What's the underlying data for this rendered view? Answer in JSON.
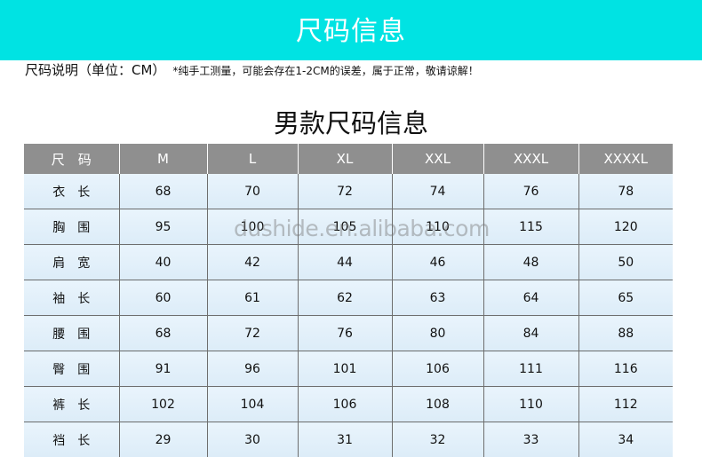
{
  "banner": {
    "title": "尺码信息",
    "color": "#00e3e3"
  },
  "note": {
    "label": "尺码说明（单位：CM）",
    "detail": "*纯手工测量，可能会存在1-2CM的误差，属于正常，敬请谅解！"
  },
  "table_title": "男款尺码信息",
  "table": {
    "headers": [
      "尺　码",
      "M",
      "L",
      "XL",
      "XXL",
      "XXXL",
      "XXXXL"
    ],
    "rows": [
      [
        "衣　长",
        "68",
        "70",
        "72",
        "74",
        "76",
        "78"
      ],
      [
        "胸　围",
        "95",
        "100",
        "105",
        "110",
        "115",
        "120"
      ],
      [
        "肩　宽",
        "40",
        "42",
        "44",
        "46",
        "48",
        "50"
      ],
      [
        "袖　长",
        "60",
        "61",
        "62",
        "63",
        "64",
        "65"
      ],
      [
        "腰　围",
        "68",
        "72",
        "76",
        "80",
        "84",
        "88"
      ],
      [
        "臀　围",
        "91",
        "96",
        "101",
        "106",
        "111",
        "116"
      ],
      [
        "裤　长",
        "102",
        "104",
        "106",
        "108",
        "110",
        "112"
      ],
      [
        "裆　长",
        "29",
        "30",
        "31",
        "32",
        "33",
        "34"
      ]
    ]
  },
  "watermark": "dushide.en.alibaba.com"
}
